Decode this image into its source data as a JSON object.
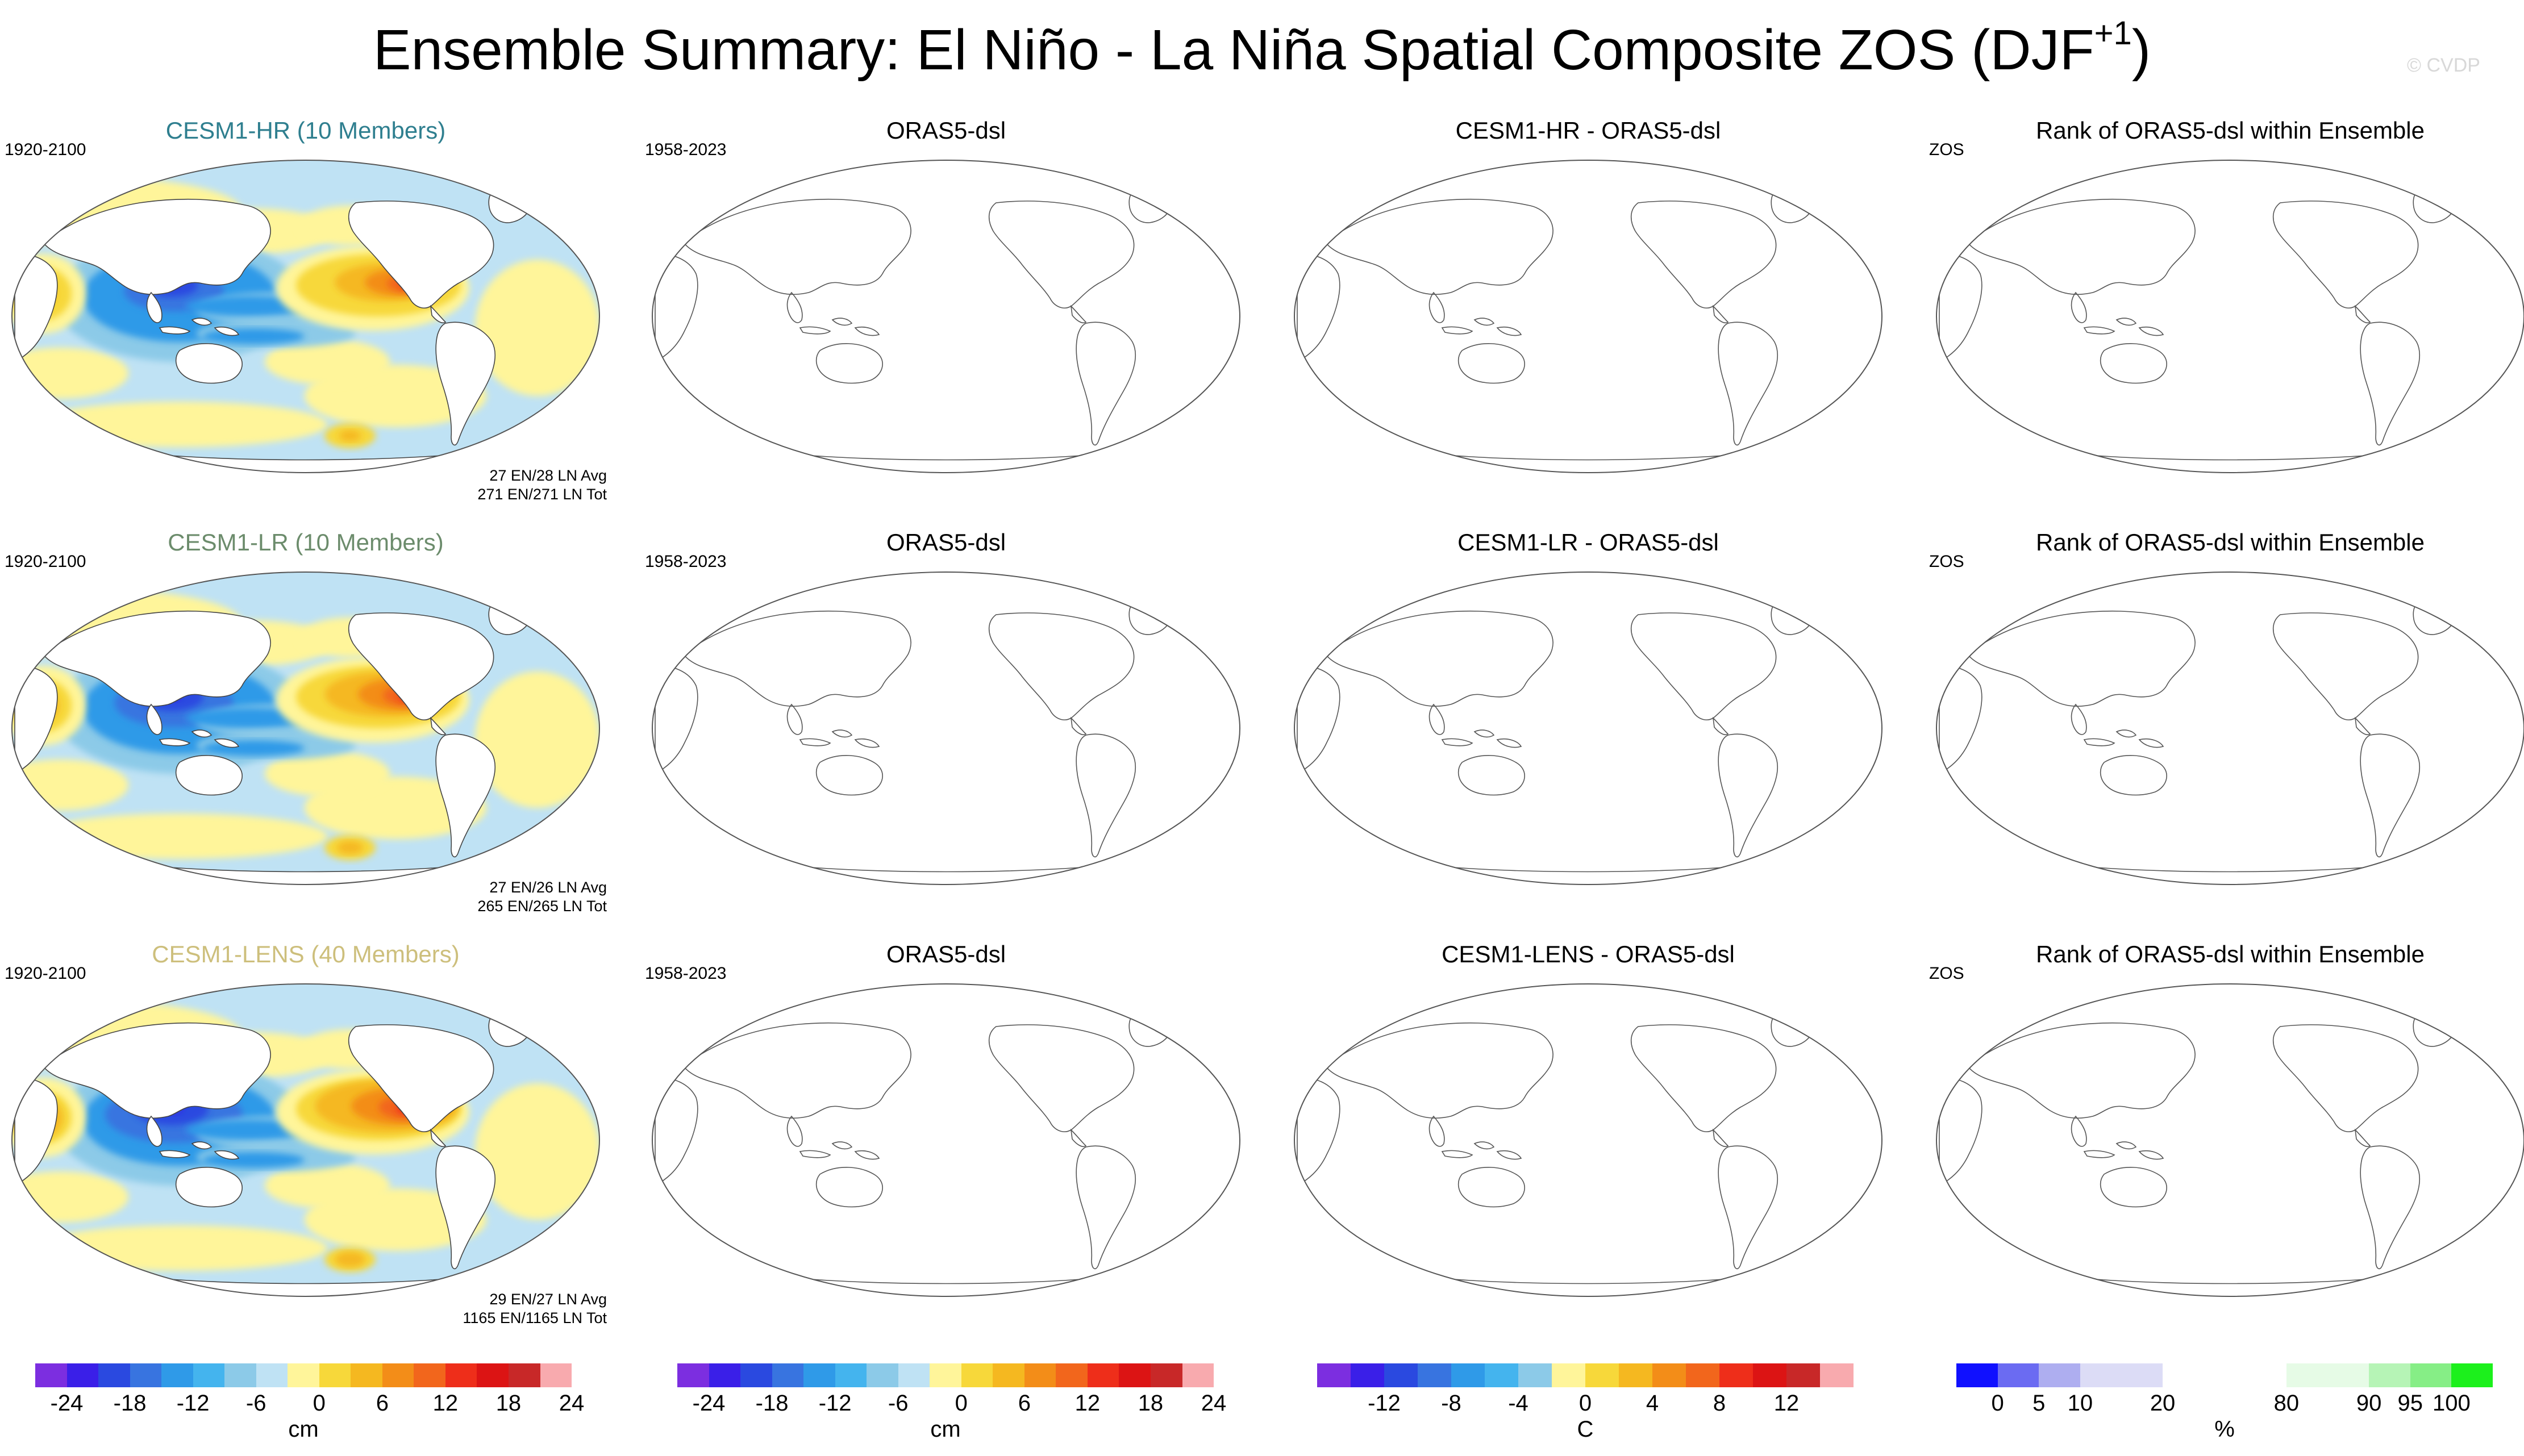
{
  "figure": {
    "title": "Ensemble Summary: El Niño - La Niña Spatial Composite ZOS (DJF",
    "title_superscript": "+1",
    "title_close": ")",
    "watermark": "© CVDP"
  },
  "rows": [
    {
      "model": {
        "title": "CESM1-HR (10 Members)",
        "title_color": "#2f7f8f",
        "period": "1920-2100",
        "stats_avg": "27 EN/28 LN Avg",
        "stats_tot": "271 EN/271 LN Tot",
        "intensity": 0.8
      },
      "obs": {
        "title": "ORAS5-dsl",
        "period": "1958-2023"
      },
      "diff": {
        "title": "CESM1-HR - ORAS5-dsl"
      },
      "rank": {
        "title": "Rank of ORAS5-dsl within Ensemble",
        "label": "ZOS"
      }
    },
    {
      "model": {
        "title": "CESM1-LR (10 Members)",
        "title_color": "#6c8c6c",
        "period": "1920-2100",
        "stats_avg": "27 EN/26 LN Avg",
        "stats_tot": "265 EN/265 LN Tot",
        "intensity": 0.95
      },
      "obs": {
        "title": "ORAS5-dsl",
        "period": "1958-2023"
      },
      "diff": {
        "title": "CESM1-LR - ORAS5-dsl"
      },
      "rank": {
        "title": "Rank of ORAS5-dsl within Ensemble",
        "label": "ZOS"
      }
    },
    {
      "model": {
        "title": "CESM1-LENS (40 Members)",
        "title_color": "#cdbf7c",
        "period": "1920-2100",
        "stats_avg": "29 EN/27 LN Avg",
        "stats_tot": "1165 EN/1165 LN Tot",
        "intensity": 1.1
      },
      "obs": {
        "title": "ORAS5-dsl",
        "period": "1958-2023"
      },
      "diff": {
        "title": "CESM1-LENS - ORAS5-dsl"
      },
      "rank": {
        "title": "Rank of ORAS5-dsl within Ensemble",
        "label": "ZOS"
      }
    }
  ],
  "colorbars": [
    {
      "unit": "cm",
      "colors": [
        "#7c2ee0",
        "#3a1fe8",
        "#2a49e0",
        "#3874e0",
        "#2f9ae8",
        "#44b4ee",
        "#8ccae8",
        "#bfe2f4",
        "#fff59a",
        "#f7d83a",
        "#f5b820",
        "#f38d18",
        "#f2661c",
        "#ee2e1a",
        "#dc1414",
        "#c82828",
        "#f8aaae"
      ],
      "ticks": [
        "-24",
        "-18",
        "-12",
        "-6",
        "0",
        "6",
        "12",
        "18",
        "24"
      ],
      "tick_index": [
        1,
        3,
        5,
        7,
        9,
        11,
        13,
        15,
        17
      ]
    },
    {
      "unit": "cm",
      "colors": [
        "#7c2ee0",
        "#3a1fe8",
        "#2a49e0",
        "#3874e0",
        "#2f9ae8",
        "#44b4ee",
        "#8ccae8",
        "#bfe2f4",
        "#fff59a",
        "#f7d83a",
        "#f5b820",
        "#f38d18",
        "#f2661c",
        "#ee2e1a",
        "#dc1414",
        "#c82828",
        "#f8aaae"
      ],
      "ticks": [
        "-24",
        "-18",
        "-12",
        "-6",
        "0",
        "6",
        "12",
        "18",
        "24"
      ],
      "tick_index": [
        1,
        3,
        5,
        7,
        9,
        11,
        13,
        15,
        17
      ]
    },
    {
      "unit": "C",
      "colors": [
        "#7c2ee0",
        "#3a1fe8",
        "#2a49e0",
        "#3874e0",
        "#2f9ae8",
        "#44b4ee",
        "#8ccae8",
        "#fff59a",
        "#f7d83a",
        "#f5b820",
        "#f38d18",
        "#f2661c",
        "#ee2e1a",
        "#dc1414",
        "#c82828",
        "#f8aaae"
      ],
      "ticks": [
        "-12",
        "-8",
        "-4",
        "0",
        "4",
        "8",
        "12"
      ],
      "tick_index": [
        2,
        4,
        6,
        8,
        10,
        12,
        14
      ]
    },
    {
      "unit": "%",
      "colors": [
        "#1010ff",
        "#6b6bf2",
        "#aeaef0",
        "#dcdcf6",
        "#dcdcf6",
        "#ffffff",
        "#ffffff",
        "#ffffff",
        "#e6fbe6",
        "#e6fbe6",
        "#b6f4b6",
        "#86ee86",
        "#1cf01c"
      ],
      "ticks": [
        "0",
        "5",
        "10",
        "20",
        "80",
        "90",
        "95",
        "100"
      ],
      "tick_index": [
        1,
        2,
        3,
        5,
        8,
        10,
        11,
        12
      ]
    }
  ]
}
